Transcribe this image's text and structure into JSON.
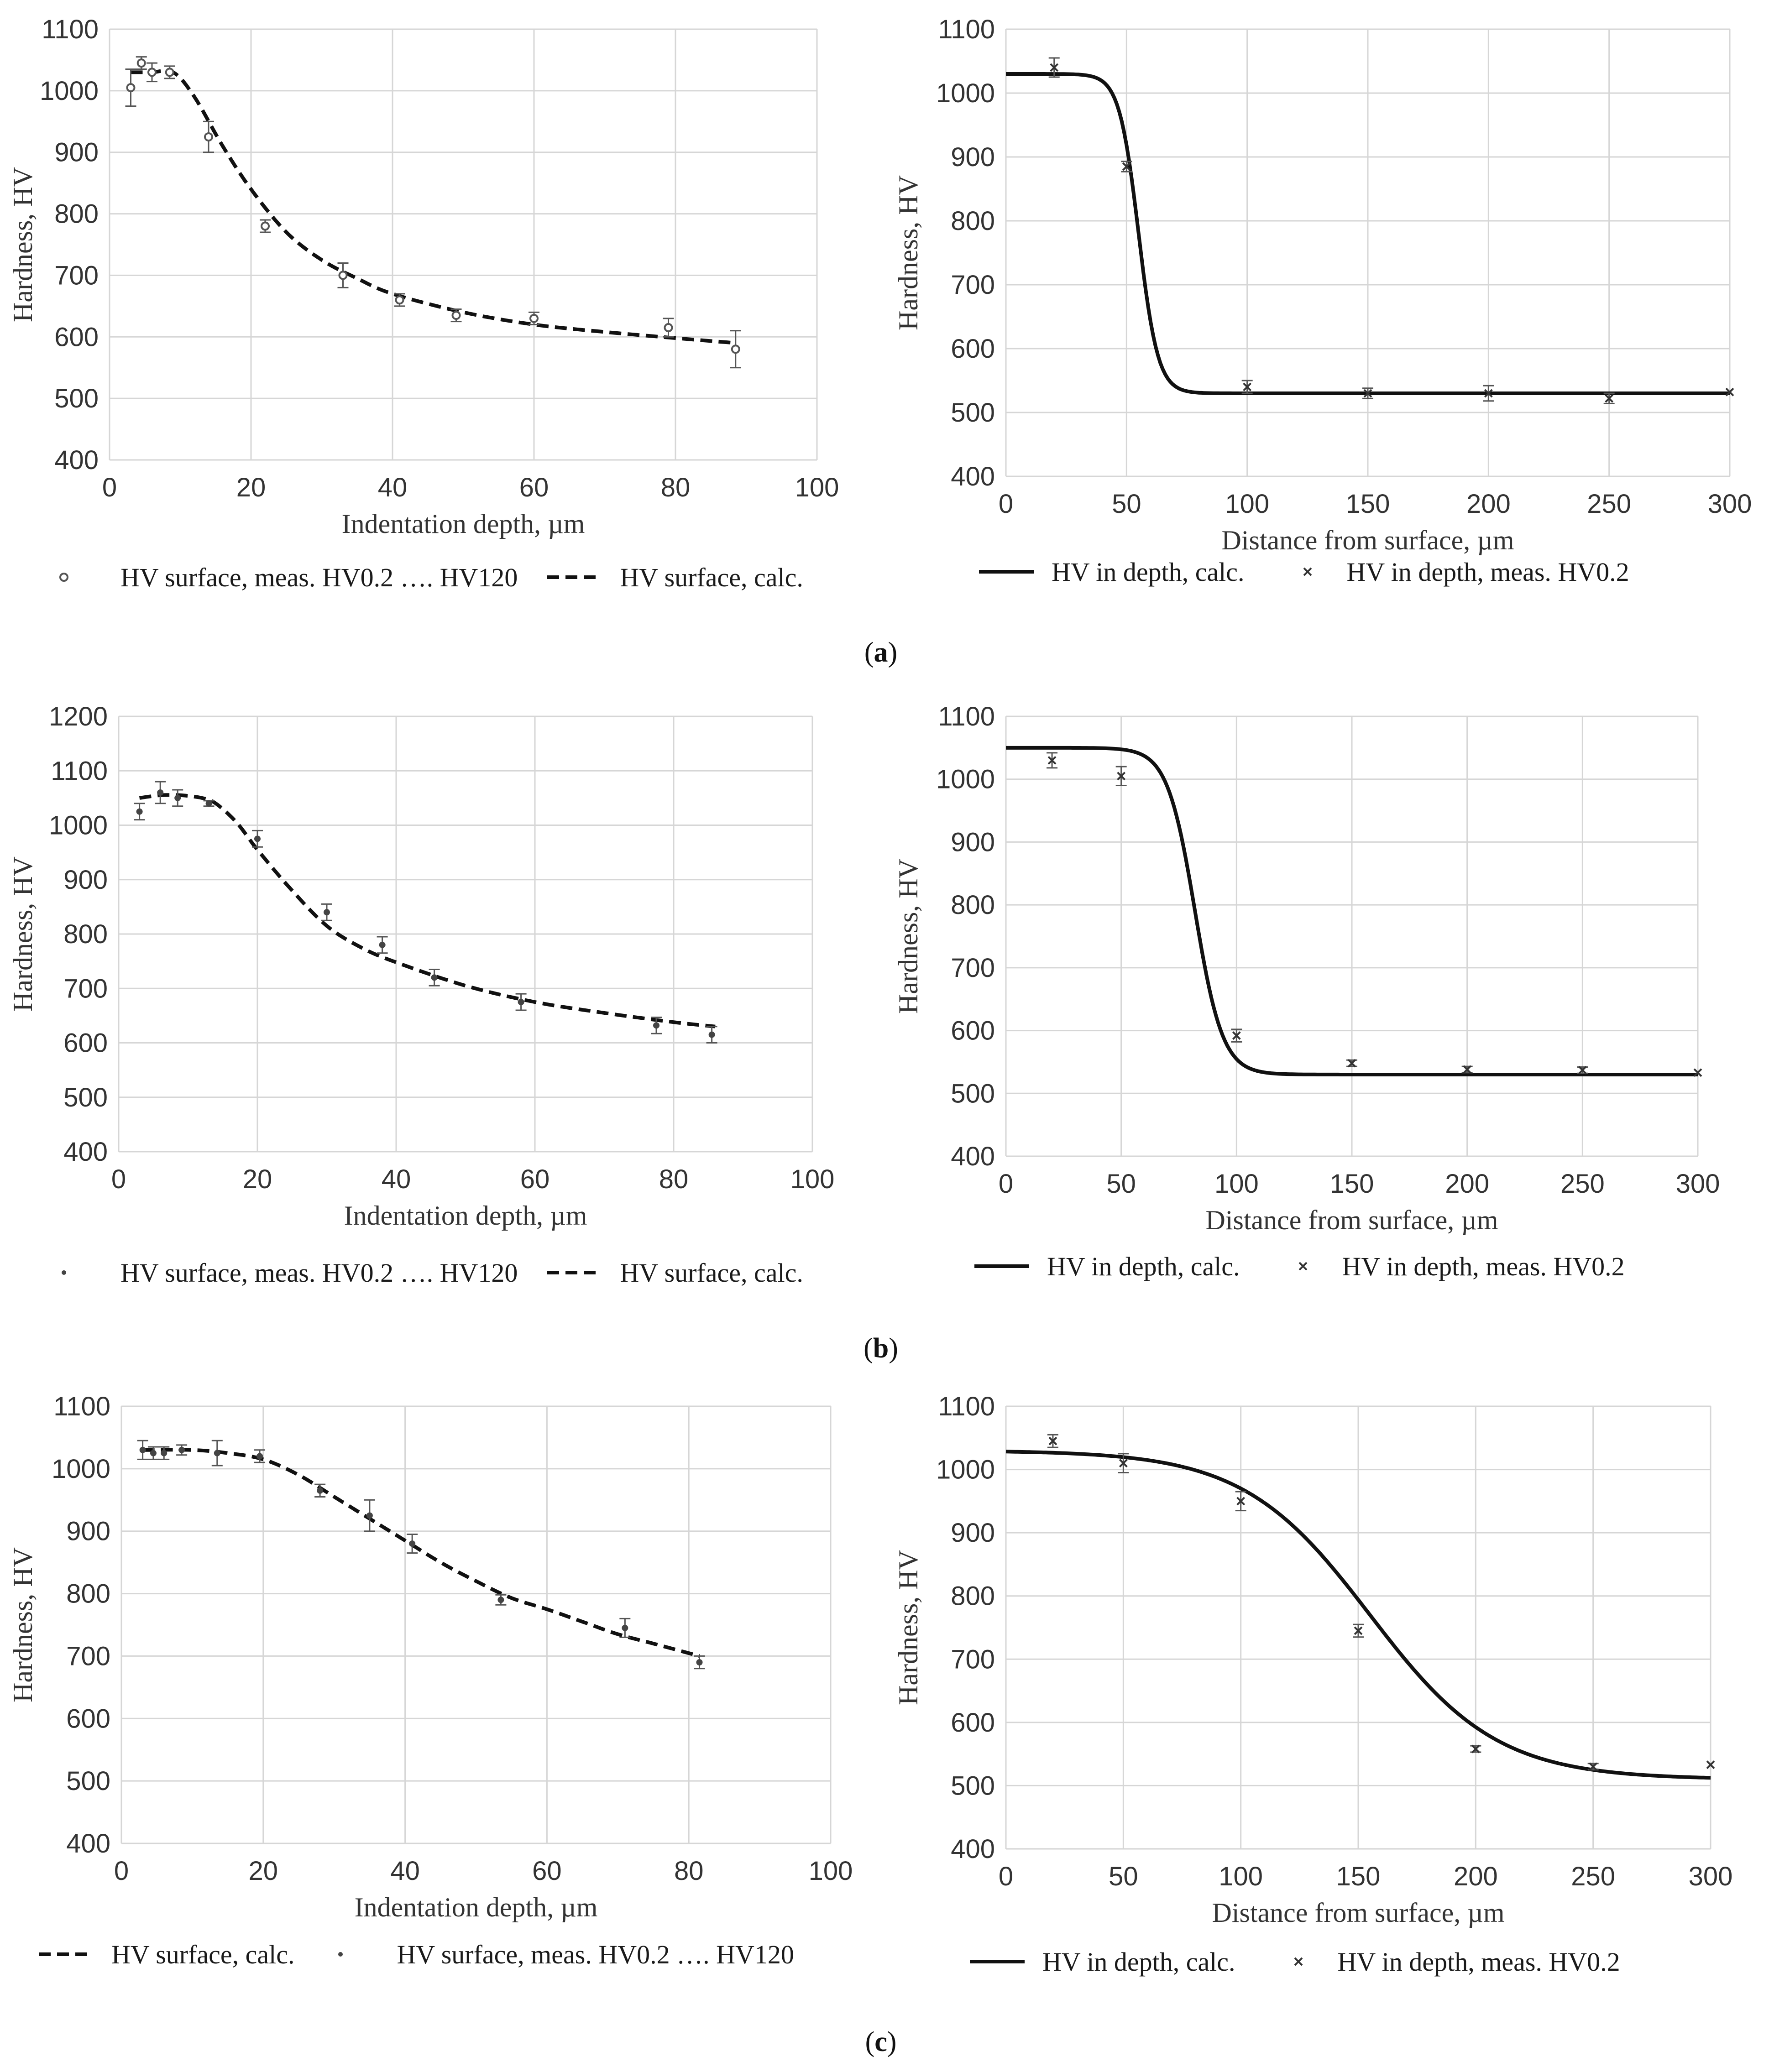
{
  "figure": {
    "captions": [
      "a",
      "b",
      "c"
    ]
  },
  "chart_data": [
    {
      "id": "a-left",
      "type": "scatter",
      "xlabel": "Indentation depth, µm",
      "ylabel": "Hardness, HV",
      "xlim": [
        0,
        100
      ],
      "ylim": [
        400,
        1100
      ],
      "xticks": [
        0,
        20,
        40,
        60,
        80,
        100
      ],
      "yticks": [
        400,
        500,
        600,
        700,
        800,
        900,
        1000,
        1100
      ],
      "legend_order": [
        "meas",
        "calc"
      ],
      "series": [
        {
          "key": "meas",
          "name": "HV surface, meas. HV0.2 …. HV120",
          "style": "marker-circle",
          "x": [
            3,
            4.5,
            6,
            8.5,
            14,
            22,
            33,
            41,
            49,
            60,
            79,
            88.5
          ],
          "y": [
            1005,
            1045,
            1030,
            1030,
            925,
            780,
            700,
            660,
            635,
            630,
            615,
            580
          ],
          "err": [
            30,
            10,
            15,
            10,
            25,
            10,
            20,
            10,
            10,
            10,
            15,
            30
          ]
        },
        {
          "key": "calc",
          "name": "HV surface, calc.",
          "style": "dashed",
          "x": [
            3,
            6,
            9,
            12,
            16,
            20,
            25,
            30,
            35,
            40,
            50,
            60,
            70,
            80,
            88.5
          ],
          "y": [
            1030,
            1030,
            1030,
            990,
            910,
            840,
            770,
            725,
            695,
            670,
            640,
            620,
            608,
            598,
            590
          ]
        }
      ]
    },
    {
      "id": "a-right",
      "type": "scatter",
      "xlabel": "Distance from surface, µm",
      "ylabel": "Hardness, HV",
      "xlim": [
        0,
        300
      ],
      "ylim": [
        400,
        1100
      ],
      "xticks": [
        0,
        50,
        100,
        150,
        200,
        250,
        300
      ],
      "yticks": [
        400,
        500,
        600,
        700,
        800,
        900,
        1000,
        1100
      ],
      "legend_order": [
        "calc",
        "meas"
      ],
      "series": [
        {
          "key": "calc",
          "name": "HV in depth, calc.",
          "style": "solid",
          "sigmoid": {
            "top": 1030,
            "bottom": 530,
            "x0": 55,
            "k": 4
          },
          "x_range": [
            0,
            300
          ]
        },
        {
          "key": "meas",
          "name": "HV in depth, meas. HV0.2",
          "style": "marker-x",
          "x": [
            20,
            50,
            100,
            150,
            200,
            250,
            300
          ],
          "y": [
            1040,
            885,
            540,
            530,
            530,
            522,
            532
          ],
          "err": [
            15,
            8,
            10,
            8,
            12,
            8,
            0
          ]
        }
      ]
    },
    {
      "id": "b-left",
      "type": "scatter",
      "xlabel": "Indentation depth, µm",
      "ylabel": "Hardness, HV",
      "xlim": [
        0,
        100
      ],
      "ylim": [
        400,
        1200
      ],
      "xticks": [
        0,
        20,
        40,
        60,
        80,
        100
      ],
      "yticks": [
        400,
        500,
        600,
        700,
        800,
        900,
        1000,
        1100,
        1200
      ],
      "legend_order": [
        "meas",
        "calc"
      ],
      "series": [
        {
          "key": "meas",
          "name": "HV surface, meas. HV0.2 …. HV120",
          "style": "marker-dot",
          "x": [
            3,
            6,
            8.5,
            13,
            20,
            30,
            38,
            45.5,
            58,
            77.5,
            85.5
          ],
          "y": [
            1025,
            1060,
            1050,
            1040,
            975,
            840,
            780,
            720,
            675,
            632,
            615
          ],
          "err": [
            15,
            20,
            15,
            5,
            15,
            15,
            15,
            15,
            15,
            15,
            15
          ]
        },
        {
          "key": "calc",
          "name": "HV surface, calc.",
          "style": "dashed",
          "x": [
            3,
            6,
            9,
            12,
            14,
            17,
            20,
            25,
            30,
            35,
            40,
            50,
            60,
            70,
            80,
            86
          ],
          "y": [
            1050,
            1055,
            1055,
            1050,
            1040,
            1005,
            955,
            880,
            815,
            775,
            748,
            705,
            675,
            655,
            638,
            630
          ]
        }
      ]
    },
    {
      "id": "b-right",
      "type": "scatter",
      "xlabel": "Distance from surface, µm",
      "ylabel": "Hardness, HV",
      "xlim": [
        0,
        300
      ],
      "ylim": [
        400,
        1100
      ],
      "xticks": [
        0,
        50,
        100,
        150,
        200,
        250,
        300
      ],
      "yticks": [
        400,
        500,
        600,
        700,
        800,
        900,
        1000,
        1100
      ],
      "legend_order": [
        "calc",
        "meas"
      ],
      "series": [
        {
          "key": "calc",
          "name": "HV in depth, calc.",
          "style": "solid",
          "sigmoid": {
            "top": 1050,
            "bottom": 530,
            "x0": 82,
            "k": 6
          },
          "x_range": [
            0,
            300
          ]
        },
        {
          "key": "meas",
          "name": "HV in depth, meas. HV0.2",
          "style": "marker-x",
          "x": [
            20,
            50,
            100,
            150,
            200,
            250,
            300
          ],
          "y": [
            1030,
            1005,
            592,
            548,
            538,
            537,
            533
          ],
          "err": [
            12,
            15,
            10,
            5,
            5,
            5,
            0
          ]
        }
      ]
    },
    {
      "id": "c-left",
      "type": "scatter",
      "xlabel": "Indentation depth, µm",
      "ylabel": "Hardness, HV",
      "xlim": [
        0,
        100
      ],
      "ylim": [
        400,
        1100
      ],
      "xticks": [
        0,
        20,
        40,
        60,
        80,
        100
      ],
      "yticks": [
        400,
        500,
        600,
        700,
        800,
        900,
        1000,
        1100
      ],
      "legend_order": [
        "calc",
        "meas"
      ],
      "series": [
        {
          "key": "meas",
          "name": "HV surface, meas. HV0.2 …. HV120",
          "style": "marker-dot",
          "x": [
            3,
            4.5,
            6,
            8.5,
            13.5,
            19.5,
            28,
            35,
            41,
            53.5,
            71,
            81.5
          ],
          "y": [
            1030,
            1025,
            1025,
            1030,
            1025,
            1020,
            965,
            925,
            880,
            790,
            745,
            690
          ],
          "err": [
            15,
            10,
            10,
            8,
            20,
            10,
            10,
            25,
            15,
            8,
            15,
            10
          ]
        },
        {
          "key": "calc",
          "name": "HV surface, calc.",
          "style": "dashed",
          "x": [
            3,
            10,
            15,
            20,
            25,
            30,
            35,
            40,
            45,
            50,
            55,
            60,
            65,
            70,
            75,
            81.5
          ],
          "y": [
            1030,
            1030,
            1025,
            1015,
            990,
            955,
            920,
            885,
            850,
            820,
            793,
            775,
            755,
            735,
            720,
            700
          ]
        }
      ]
    },
    {
      "id": "c-right",
      "type": "scatter",
      "xlabel": "Distance from surface, µm",
      "ylabel": "Hardness, HV",
      "xlim": [
        0,
        300
      ],
      "ylim": [
        400,
        1100
      ],
      "xticks": [
        0,
        50,
        100,
        150,
        200,
        250,
        300
      ],
      "yticks": [
        400,
        500,
        600,
        700,
        800,
        900,
        1000,
        1100
      ],
      "legend_order": [
        "calc",
        "meas"
      ],
      "series": [
        {
          "key": "calc",
          "name": "HV in depth, calc.",
          "style": "solid",
          "sigmoid": {
            "top": 1030,
            "bottom": 510,
            "x0": 155,
            "k": 27
          },
          "x_range": [
            0,
            300
          ]
        },
        {
          "key": "meas",
          "name": "HV in depth, meas. HV0.2",
          "style": "marker-x",
          "x": [
            20,
            50,
            100,
            150,
            200,
            250,
            300
          ],
          "y": [
            1045,
            1010,
            950,
            745,
            558,
            530,
            533
          ],
          "err": [
            10,
            15,
            15,
            10,
            5,
            5,
            0
          ]
        }
      ]
    }
  ]
}
